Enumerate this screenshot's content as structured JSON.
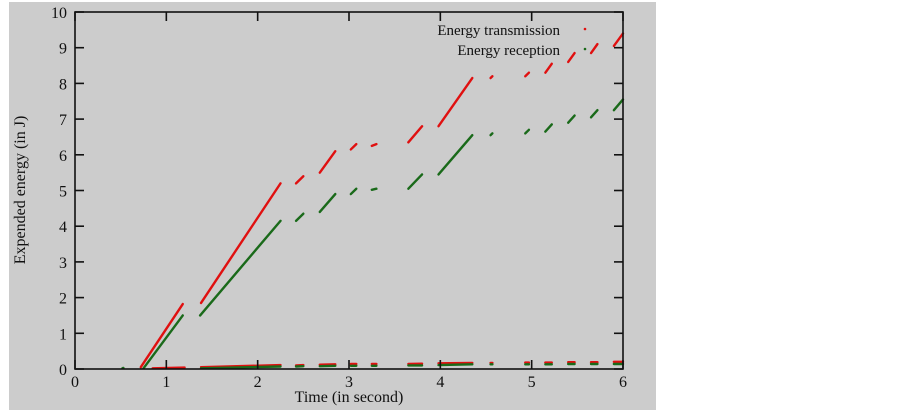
{
  "chart_data": {
    "type": "scatter",
    "title": "",
    "xlabel": "Time (in second)",
    "ylabel": "Expended energy (in J)",
    "xlim": [
      0,
      6
    ],
    "ylim": [
      0,
      10
    ],
    "xticks": [
      0,
      1,
      2,
      3,
      4,
      5,
      6
    ],
    "yticks": [
      0,
      1,
      2,
      3,
      4,
      5,
      6,
      7,
      8,
      9,
      10
    ],
    "grid": false,
    "legend_position": "top-right",
    "background": "#cccccc",
    "series": [
      {
        "name": "Energy transmission",
        "color": "#e01010",
        "segments": [
          [
            [
              0.72,
              0.05
            ],
            [
              1.18,
              1.82
            ]
          ],
          [
            [
              1.38,
              1.85
            ],
            [
              2.25,
              5.2
            ]
          ],
          [
            [
              2.42,
              5.2
            ],
            [
              2.5,
              5.4
            ]
          ],
          [
            [
              2.68,
              5.5
            ],
            [
              2.85,
              6.1
            ]
          ],
          [
            [
              3.02,
              6.15
            ],
            [
              3.08,
              6.3
            ]
          ],
          [
            [
              3.25,
              6.25
            ],
            [
              3.3,
              6.3
            ]
          ],
          [
            [
              3.65,
              6.35
            ],
            [
              3.8,
              6.8
            ]
          ],
          [
            [
              3.98,
              6.8
            ],
            [
              4.35,
              8.15
            ]
          ],
          [
            [
              4.55,
              8.15
            ],
            [
              4.57,
              8.2
            ]
          ],
          [
            [
              4.93,
              8.2
            ],
            [
              4.97,
              8.3
            ]
          ],
          [
            [
              5.15,
              8.3
            ],
            [
              5.22,
              8.55
            ]
          ],
          [
            [
              5.4,
              8.6
            ],
            [
              5.47,
              8.85
            ]
          ],
          [
            [
              5.65,
              8.85
            ],
            [
              5.72,
              9.1
            ]
          ],
          [
            [
              5.9,
              9.05
            ],
            [
              6.0,
              9.4
            ]
          ],
          [
            [
              0.85,
              0.02
            ],
            [
              1.2,
              0.04
            ]
          ],
          [
            [
              1.38,
              0.05
            ],
            [
              2.25,
              0.11
            ]
          ],
          [
            [
              2.42,
              0.1
            ],
            [
              2.5,
              0.11
            ]
          ],
          [
            [
              2.68,
              0.12
            ],
            [
              2.85,
              0.13
            ]
          ],
          [
            [
              3.02,
              0.14
            ],
            [
              3.08,
              0.14
            ]
          ],
          [
            [
              3.25,
              0.14
            ],
            [
              3.3,
              0.14
            ]
          ],
          [
            [
              3.65,
              0.14
            ],
            [
              3.8,
              0.15
            ]
          ],
          [
            [
              3.98,
              0.16
            ],
            [
              4.35,
              0.17
            ]
          ],
          [
            [
              4.55,
              0.17
            ],
            [
              4.57,
              0.17
            ]
          ],
          [
            [
              4.93,
              0.18
            ],
            [
              4.97,
              0.18
            ]
          ],
          [
            [
              5.15,
              0.18
            ],
            [
              5.22,
              0.18
            ]
          ],
          [
            [
              5.4,
              0.19
            ],
            [
              5.47,
              0.19
            ]
          ],
          [
            [
              5.65,
              0.19
            ],
            [
              5.72,
              0.19
            ]
          ],
          [
            [
              5.9,
              0.2
            ],
            [
              6.0,
              0.2
            ]
          ]
        ]
      },
      {
        "name": "Energy reception",
        "color": "#1a6a1a",
        "segments": [
          [
            [
              0.52,
              0.02
            ],
            [
              0.53,
              0.03
            ]
          ],
          [
            [
              0.75,
              0.02
            ],
            [
              1.18,
              1.5
            ]
          ],
          [
            [
              1.37,
              1.5
            ],
            [
              2.25,
              4.15
            ]
          ],
          [
            [
              2.42,
              4.15
            ],
            [
              2.5,
              4.35
            ]
          ],
          [
            [
              2.68,
              4.4
            ],
            [
              2.85,
              4.9
            ]
          ],
          [
            [
              3.02,
              4.9
            ],
            [
              3.08,
              5.05
            ]
          ],
          [
            [
              3.25,
              5.02
            ],
            [
              3.3,
              5.05
            ]
          ],
          [
            [
              3.65,
              5.05
            ],
            [
              3.8,
              5.45
            ]
          ],
          [
            [
              3.98,
              5.45
            ],
            [
              4.35,
              6.55
            ]
          ],
          [
            [
              4.55,
              6.55
            ],
            [
              4.57,
              6.6
            ]
          ],
          [
            [
              4.93,
              6.6
            ],
            [
              4.97,
              6.7
            ]
          ],
          [
            [
              5.15,
              6.65
            ],
            [
              5.22,
              6.85
            ]
          ],
          [
            [
              5.4,
              6.9
            ],
            [
              5.47,
              7.1
            ]
          ],
          [
            [
              5.65,
              7.05
            ],
            [
              5.72,
              7.25
            ]
          ],
          [
            [
              5.9,
              7.25
            ],
            [
              6.0,
              7.55
            ]
          ],
          [
            [
              1.38,
              0.02
            ],
            [
              2.25,
              0.07
            ]
          ],
          [
            [
              2.42,
              0.07
            ],
            [
              2.5,
              0.08
            ]
          ],
          [
            [
              2.68,
              0.08
            ],
            [
              2.85,
              0.09
            ]
          ],
          [
            [
              3.02,
              0.09
            ],
            [
              3.08,
              0.09
            ]
          ],
          [
            [
              3.25,
              0.09
            ],
            [
              3.3,
              0.09
            ]
          ],
          [
            [
              3.65,
              0.1
            ],
            [
              3.8,
              0.1
            ]
          ],
          [
            [
              3.98,
              0.11
            ],
            [
              4.35,
              0.13
            ]
          ],
          [
            [
              4.55,
              0.13
            ],
            [
              4.57,
              0.13
            ]
          ],
          [
            [
              4.93,
              0.13
            ],
            [
              4.97,
              0.13
            ]
          ],
          [
            [
              5.15,
              0.13
            ],
            [
              5.22,
              0.13
            ]
          ],
          [
            [
              5.4,
              0.14
            ],
            [
              5.47,
              0.14
            ]
          ],
          [
            [
              5.65,
              0.14
            ],
            [
              5.72,
              0.14
            ]
          ],
          [
            [
              5.9,
              0.14
            ],
            [
              6.0,
              0.14
            ]
          ]
        ]
      }
    ]
  }
}
